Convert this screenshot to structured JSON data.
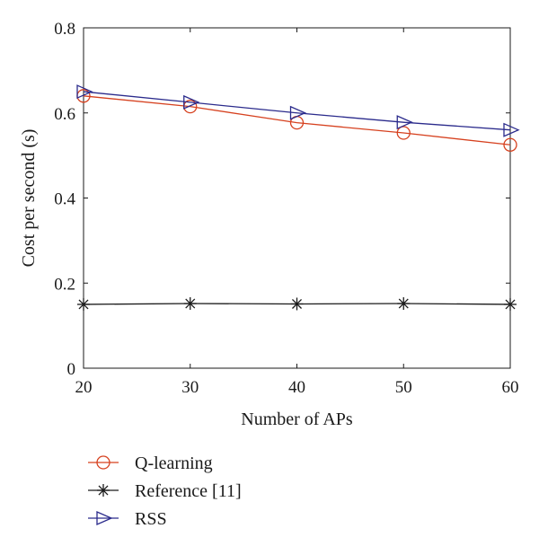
{
  "chart_data": {
    "type": "line",
    "title": "",
    "xlabel": "Number of APs",
    "ylabel": "Cost per second (s)",
    "xlim": [
      20,
      60
    ],
    "ylim": [
      0,
      0.8
    ],
    "x": [
      20,
      30,
      40,
      50,
      60
    ],
    "x_ticks": [
      20,
      30,
      40,
      50,
      60
    ],
    "x_tick_labels": [
      "20",
      "30",
      "40",
      "50",
      "60"
    ],
    "y_ticks": [
      0,
      0.2,
      0.4,
      0.6,
      0.8
    ],
    "y_tick_labels": [
      "0",
      "0.2",
      "0.4",
      "0.6",
      "0.8"
    ],
    "grid": false,
    "legend_position": "below",
    "series": [
      {
        "name": "Q-learning",
        "values": [
          0.64,
          0.615,
          0.577,
          0.553,
          0.525
        ],
        "color": "#d6411f",
        "marker": "circle"
      },
      {
        "name": "Reference [11]",
        "values": [
          0.15,
          0.152,
          0.151,
          0.152,
          0.15
        ],
        "color": "#1a1a1a",
        "marker": "asterisk"
      },
      {
        "name": "RSS",
        "values": [
          0.65,
          0.625,
          0.6,
          0.578,
          0.56
        ],
        "color": "#2b2b8c",
        "marker": "triangle-right"
      }
    ]
  }
}
